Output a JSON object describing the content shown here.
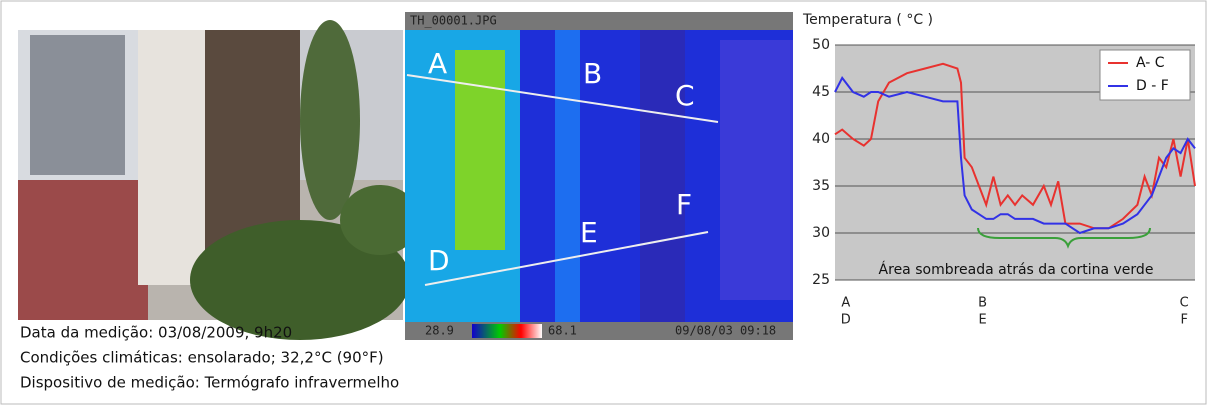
{
  "captions": [
    "Data da medição: 03/08/2009, 9h20",
    "Condições climáticas: ensolarado; 32,2°C (90°F)",
    "Dispositivo de medição: Termógrafo infravermelho"
  ],
  "thermal": {
    "filename": "TH_00001.JPG",
    "scale_min": "28.9",
    "scale_max": "68.1",
    "timestamp": "09/08/03 09:18",
    "points": [
      "A",
      "B",
      "C",
      "D",
      "E",
      "F"
    ]
  },
  "chart_data": {
    "type": "line",
    "title": "Temperatura ( °C )",
    "x": [
      0,
      2,
      5,
      8,
      10,
      12,
      15,
      20,
      25,
      30,
      34,
      35,
      36,
      38,
      40,
      42,
      44,
      46,
      48,
      50,
      52,
      55,
      58,
      60,
      62,
      64,
      68,
      72,
      76,
      80,
      84,
      86,
      88,
      90,
      92,
      94,
      96,
      98,
      100
    ],
    "series": [
      {
        "name": "A- C",
        "color": "#e8322f",
        "values": [
          40.5,
          41,
          40,
          39.3,
          40,
          44,
          46,
          47,
          47.5,
          48,
          47.5,
          46,
          38,
          37,
          35,
          33,
          36,
          33,
          34,
          33,
          34,
          33,
          35,
          33,
          35.5,
          31,
          31,
          30.5,
          30.5,
          31.5,
          33,
          36,
          34,
          38,
          37,
          40,
          36,
          40,
          35
        ]
      },
      {
        "name": "D - F",
        "color": "#3232e6",
        "values": [
          45,
          46.5,
          45,
          44.5,
          45,
          45,
          44.5,
          45,
          44.5,
          44,
          44,
          38,
          34,
          32.5,
          32,
          31.5,
          31.5,
          32,
          32,
          31.5,
          31.5,
          31.5,
          31,
          31,
          31,
          31,
          30,
          30.5,
          30.5,
          31,
          32,
          33,
          34,
          36,
          38,
          39,
          38.5,
          40,
          39
        ]
      }
    ],
    "xlim": [
      0,
      100
    ],
    "xticks": [
      {
        "value": 3,
        "label": "A"
      },
      {
        "value": 41,
        "label": "B"
      },
      {
        "value": 97,
        "label": "C"
      }
    ],
    "xticks_lower": [
      {
        "value": 3,
        "label": "D"
      },
      {
        "value": 41,
        "label": "E"
      },
      {
        "value": 97,
        "label": "F"
      }
    ],
    "ylim": [
      25,
      50
    ],
    "yticks": [
      25,
      30,
      35,
      40,
      45,
      50
    ],
    "grid": true,
    "legend": "top-right",
    "annotation": "Área sombreada atrás da cortina verde"
  }
}
